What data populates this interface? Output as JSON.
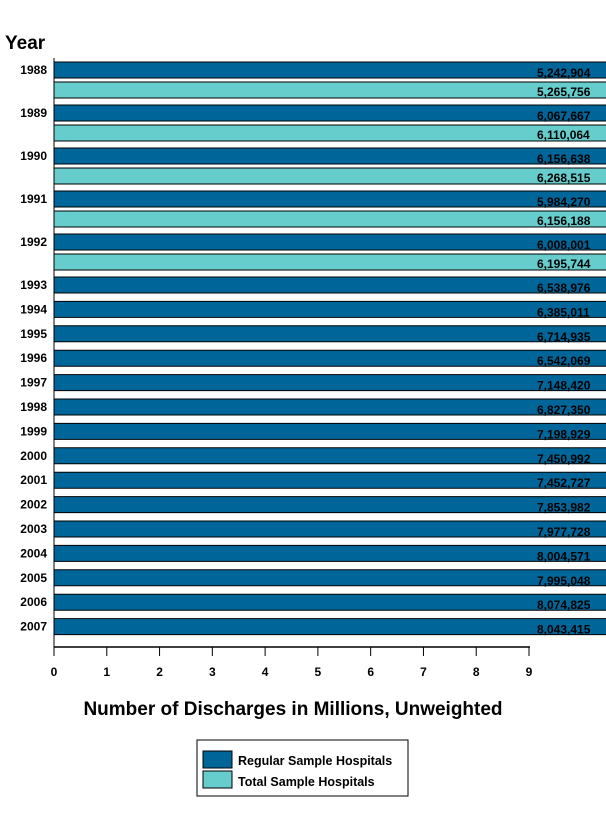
{
  "chart_data": {
    "type": "bar",
    "orientation": "horizontal",
    "ylabel": "Year",
    "xlabel": "Number of Discharges in Millions, Unweighted",
    "xlim": [
      0,
      9
    ],
    "xticks": [
      "0",
      "1",
      "2",
      "3",
      "4",
      "5",
      "6",
      "7",
      "8",
      "9"
    ],
    "grid": false,
    "legend_placement": "bottom-center",
    "categories": [
      "1988",
      "1989",
      "1990",
      "1991",
      "1992",
      "1993",
      "1994",
      "1995",
      "1996",
      "1997",
      "1998",
      "1999",
      "2000",
      "2001",
      "2002",
      "2003",
      "2004",
      "2005",
      "2006",
      "2007"
    ],
    "series": [
      {
        "name": "Regular Sample Hospitals",
        "color": "#006699",
        "values": [
          5242904,
          6067667,
          6156638,
          5984270,
          6008001,
          6538976,
          6385011,
          6714935,
          6542069,
          7148420,
          6827350,
          7198929,
          7450992,
          7452727,
          7853982,
          7977728,
          8004571,
          7995048,
          8074825,
          8043415
        ],
        "labels": [
          "5,242,904",
          "6,067,667",
          "6,156,638",
          "5,984,270",
          "6,008,001",
          "6,538,976",
          "6,385,011",
          "6,714,935",
          "6,542,069",
          "7,148,420",
          "6,827,350",
          "7,198,929",
          "7,450,992",
          "7,452,727",
          "7,853,982",
          "7,977,728",
          "8,004,571",
          "7,995,048",
          "8,074,825",
          "8,043,415"
        ]
      },
      {
        "name": "Total Sample Hospitals",
        "color": "#66CCCC",
        "values": [
          5265756,
          6110064,
          6268515,
          6156188,
          6195744,
          null,
          null,
          null,
          null,
          null,
          null,
          null,
          null,
          null,
          null,
          null,
          null,
          null,
          null,
          null
        ],
        "labels": [
          "5,265,756",
          "6,110,064",
          "6,268,515",
          "6,156,188",
          "6,195,744",
          null,
          null,
          null,
          null,
          null,
          null,
          null,
          null,
          null,
          null,
          null,
          null,
          null,
          null,
          null
        ]
      }
    ]
  }
}
